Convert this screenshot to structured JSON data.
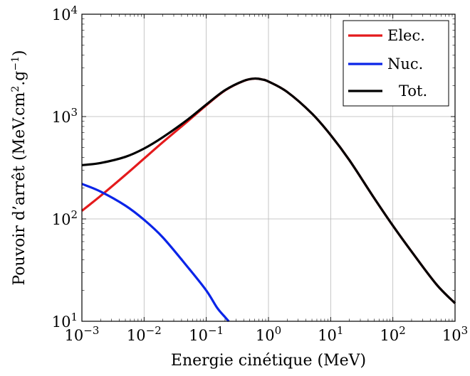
{
  "chart_data": {
    "type": "line",
    "title": "",
    "xlabel": "Energie cinétique (MeV)",
    "ylabel": "Pouvoir d’arrêt (MeV.cm",
    "ylabel_sup1": "2",
    "ylabel_mid": ".g",
    "ylabel_sup2": "−1",
    "ylabel_end": ")",
    "xscale": "log",
    "yscale": "log",
    "xlim": [
      0.001,
      1000
    ],
    "ylim": [
      10,
      10000
    ],
    "grid": true,
    "legend_position": "top-right",
    "x_ticks": [
      {
        "base": "10",
        "exp": "−3"
      },
      {
        "base": "10",
        "exp": "−2"
      },
      {
        "base": "10",
        "exp": "−1"
      },
      {
        "base": "10",
        "exp": "0"
      },
      {
        "base": "10",
        "exp": "1"
      },
      {
        "base": "10",
        "exp": "2"
      },
      {
        "base": "10",
        "exp": "3"
      }
    ],
    "y_ticks": [
      {
        "base": "10",
        "exp": "1"
      },
      {
        "base": "10",
        "exp": "2"
      },
      {
        "base": "10",
        "exp": "3"
      },
      {
        "base": "10",
        "exp": "4"
      }
    ],
    "series": [
      {
        "name": "Elec.",
        "color": "#e41a1c",
        "points": [
          [
            0.001,
            120
          ],
          [
            0.002,
            168
          ],
          [
            0.005,
            269
          ],
          [
            0.01,
            389
          ],
          [
            0.02,
            562
          ],
          [
            0.05,
            898
          ],
          [
            0.1,
            1290
          ],
          [
            0.2,
            1800
          ],
          [
            0.4,
            2230
          ],
          [
            0.6,
            2350
          ],
          [
            0.8,
            2300
          ],
          [
            1,
            2200
          ],
          [
            2,
            1740
          ],
          [
            5,
            1070
          ],
          [
            10,
            660
          ],
          [
            20,
            375
          ],
          [
            50,
            160
          ],
          [
            100,
            86
          ],
          [
            200,
            48
          ],
          [
            500,
            23
          ],
          [
            1000,
            15
          ]
        ]
      },
      {
        "name": "Nuc.",
        "color": "#0a24e8",
        "points": [
          [
            0.001,
            220
          ],
          [
            0.002,
            185
          ],
          [
            0.005,
            135
          ],
          [
            0.01,
            98
          ],
          [
            0.02,
            66
          ],
          [
            0.05,
            34
          ],
          [
            0.1,
            20
          ],
          [
            0.15,
            13.5
          ],
          [
            0.2,
            11
          ],
          [
            0.23,
            10
          ]
        ]
      },
      {
        "name": "Tot.",
        "color": "#000000",
        "points": [
          [
            0.001,
            335
          ],
          [
            0.002,
            352
          ],
          [
            0.005,
            404
          ],
          [
            0.01,
            487
          ],
          [
            0.02,
            628
          ],
          [
            0.05,
            932
          ],
          [
            0.1,
            1310
          ],
          [
            0.2,
            1811
          ],
          [
            0.4,
            2235
          ],
          [
            0.6,
            2352
          ],
          [
            0.8,
            2300
          ],
          [
            1,
            2200
          ],
          [
            2,
            1740
          ],
          [
            5,
            1070
          ],
          [
            10,
            660
          ],
          [
            20,
            375
          ],
          [
            50,
            160
          ],
          [
            100,
            86
          ],
          [
            200,
            48
          ],
          [
            500,
            23
          ],
          [
            1000,
            15
          ]
        ]
      }
    ]
  }
}
